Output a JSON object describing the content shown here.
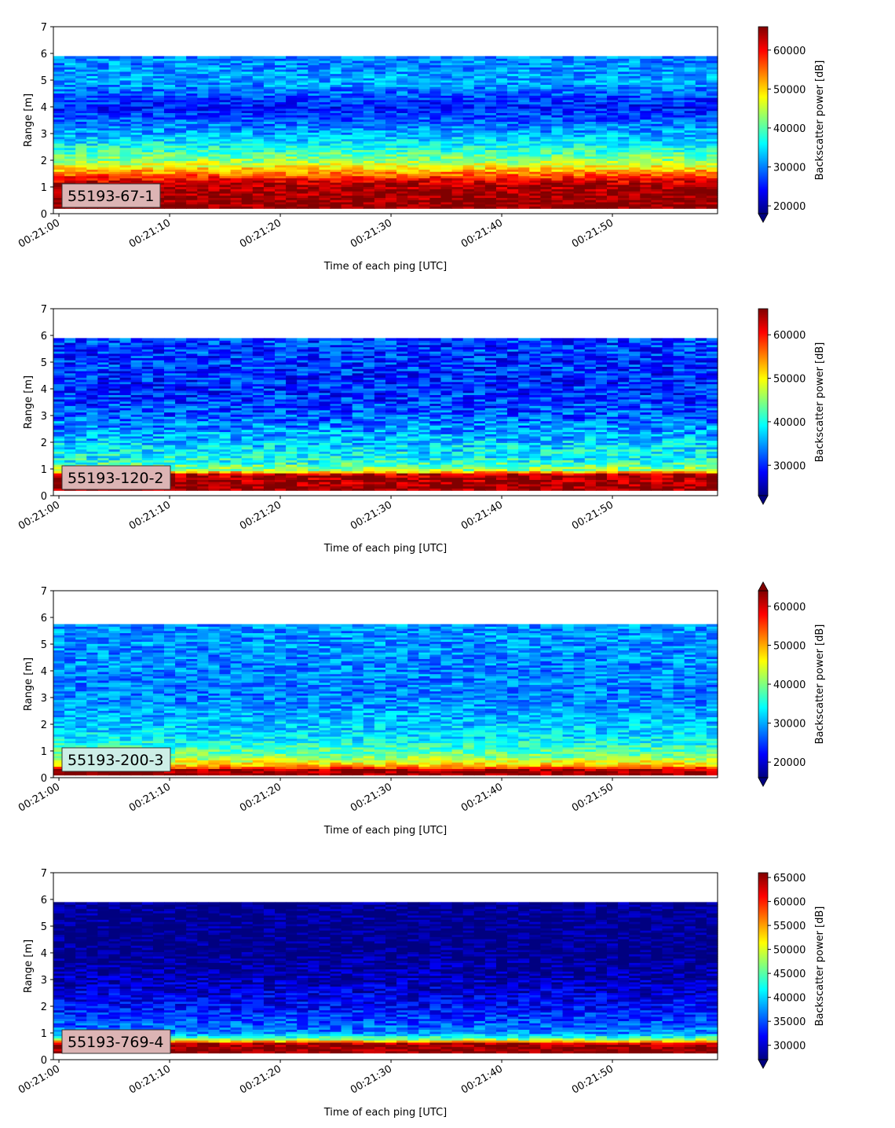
{
  "chart_data": [
    {
      "type": "heatmap",
      "label": "55193-67-1",
      "label_bg": "#dcb4b4",
      "xlabel": "Time of each ping [UTC]",
      "ylabel": "Range [m]",
      "x_ticks": [
        "00:21:00",
        "00:21:10",
        "00:21:20",
        "00:21:30",
        "00:21:40",
        "00:21:50"
      ],
      "x_range_seconds": [
        -0.5,
        59.5
      ],
      "ylim": [
        0,
        7
      ],
      "y_ticks": [
        0,
        1,
        2,
        3,
        4,
        5,
        6,
        7
      ],
      "data_range_m": [
        0.2,
        5.9
      ],
      "colormap": "jet",
      "colorbar_label": "Backscatter power [dB]",
      "clim": [
        18000,
        66000
      ],
      "colorbar_ticks": [
        20000,
        30000,
        40000,
        50000,
        60000
      ],
      "colorbar_extend": "min",
      "range_profile": [
        {
          "range_m": 0.2,
          "value": 66000
        },
        {
          "range_m": 1.1,
          "value": 64000
        },
        {
          "range_m": 1.3,
          "value": 60000
        },
        {
          "range_m": 1.6,
          "value": 52000
        },
        {
          "range_m": 2.0,
          "value": 43000
        },
        {
          "range_m": 2.5,
          "value": 37000
        },
        {
          "range_m": 3.0,
          "value": 32000
        },
        {
          "range_m": 4.0,
          "value": 25000
        },
        {
          "range_m": 5.0,
          "value": 32000
        },
        {
          "range_m": 5.9,
          "value": 30000
        }
      ],
      "noise_amplitude": 4500
    },
    {
      "type": "heatmap",
      "label": "55193-120-2",
      "label_bg": "#dcb4b4",
      "xlabel": "Time of each ping [UTC]",
      "ylabel": "Range [m]",
      "x_ticks": [
        "00:21:00",
        "00:21:10",
        "00:21:20",
        "00:21:30",
        "00:21:40",
        "00:21:50"
      ],
      "x_range_seconds": [
        -0.5,
        59.5
      ],
      "ylim": [
        0,
        7
      ],
      "y_ticks": [
        0,
        1,
        2,
        3,
        4,
        5,
        6,
        7
      ],
      "data_range_m": [
        0.2,
        5.9
      ],
      "colormap": "jet",
      "colorbar_label": "Backscatter power [dB]",
      "clim": [
        23000,
        66000
      ],
      "colorbar_ticks": [
        30000,
        40000,
        50000,
        60000
      ],
      "colorbar_extend": "min",
      "range_profile": [
        {
          "range_m": 0.2,
          "value": 66000
        },
        {
          "range_m": 0.8,
          "value": 64000
        },
        {
          "range_m": 0.95,
          "value": 46000
        },
        {
          "range_m": 1.3,
          "value": 40000
        },
        {
          "range_m": 2.0,
          "value": 37000
        },
        {
          "range_m": 3.0,
          "value": 32000
        },
        {
          "range_m": 4.0,
          "value": 30000
        },
        {
          "range_m": 5.9,
          "value": 31000
        }
      ],
      "noise_amplitude": 5000
    },
    {
      "type": "heatmap",
      "label": "55193-200-3",
      "label_bg": "#cdeee6",
      "xlabel": "Time of each ping [UTC]",
      "ylabel": "Range [m]",
      "x_ticks": [
        "00:21:00",
        "00:21:10",
        "00:21:20",
        "00:21:30",
        "00:21:40",
        "00:21:50"
      ],
      "x_range_seconds": [
        -0.5,
        59.5
      ],
      "ylim": [
        0,
        7
      ],
      "y_ticks": [
        0,
        1,
        2,
        3,
        4,
        5,
        6,
        7
      ],
      "data_range_m": [
        0.1,
        5.75
      ],
      "colormap": "jet",
      "colorbar_label": "Backscatter power [dB]",
      "clim": [
        16000,
        64000
      ],
      "colorbar_ticks": [
        20000,
        30000,
        40000,
        50000,
        60000
      ],
      "colorbar_extend": "both",
      "range_profile": [
        {
          "range_m": 0.1,
          "value": 64000
        },
        {
          "range_m": 0.3,
          "value": 62000
        },
        {
          "range_m": 0.45,
          "value": 50000
        },
        {
          "range_m": 0.8,
          "value": 40000
        },
        {
          "range_m": 1.5,
          "value": 33000
        },
        {
          "range_m": 3.0,
          "value": 28000
        },
        {
          "range_m": 5.75,
          "value": 29000
        }
      ],
      "noise_amplitude": 4500
    },
    {
      "type": "heatmap",
      "label": "55193-769-4",
      "label_bg": "#dcb4b4",
      "xlabel": "Time of each ping [UTC]",
      "ylabel": "Range [m]",
      "x_ticks": [
        "00:21:00",
        "00:21:10",
        "00:21:20",
        "00:21:30",
        "00:21:40",
        "00:21:50"
      ],
      "x_range_seconds": [
        -0.5,
        59.5
      ],
      "ylim": [
        0,
        7
      ],
      "y_ticks": [
        0,
        1,
        2,
        3,
        4,
        5,
        6,
        7
      ],
      "data_range_m": [
        0.25,
        5.9
      ],
      "colormap": "jet",
      "colorbar_label": "Backscatter power [dB]",
      "clim": [
        27000,
        66000
      ],
      "colorbar_ticks": [
        30000,
        35000,
        40000,
        45000,
        50000,
        55000,
        60000,
        65000
      ],
      "colorbar_extend": "min",
      "range_profile": [
        {
          "range_m": 0.25,
          "value": 66000
        },
        {
          "range_m": 0.6,
          "value": 65000
        },
        {
          "range_m": 0.75,
          "value": 48000
        },
        {
          "range_m": 1.0,
          "value": 37000
        },
        {
          "range_m": 2.0,
          "value": 32000
        },
        {
          "range_m": 3.0,
          "value": 29000
        },
        {
          "range_m": 4.0,
          "value": 27000
        },
        {
          "range_m": 5.9,
          "value": 27000
        }
      ],
      "noise_amplitude": 3500
    }
  ]
}
